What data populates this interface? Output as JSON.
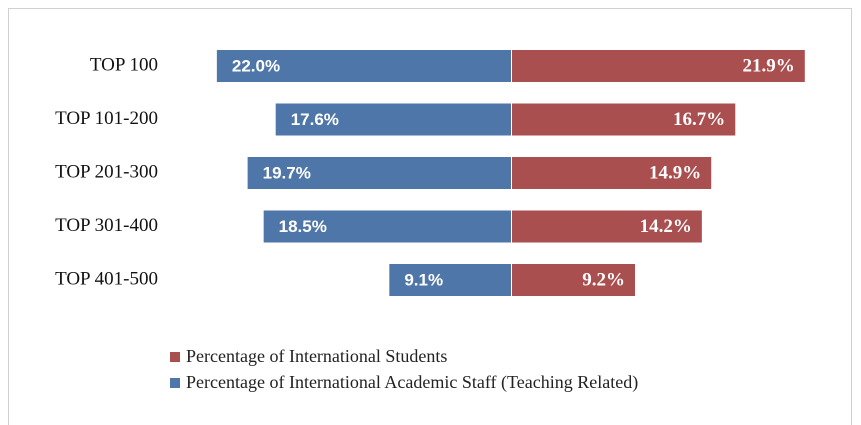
{
  "chart_data": {
    "type": "butterfly",
    "categories": [
      "TOP 100",
      "TOP 101-200",
      "TOP 201-300",
      "TOP 301-400",
      "TOP 401-500"
    ],
    "series": [
      {
        "name": "Percentage of International Students",
        "color": "#a94f4f",
        "side": "right",
        "values": [
          21.9,
          16.7,
          14.9,
          14.2,
          9.2
        ],
        "value_labels": [
          "21.9%",
          "16.7%",
          "14.9%",
          "14.2%",
          "9.2%"
        ]
      },
      {
        "name": "Percentage of International Academic Staff (Teaching Related)",
        "color": "#4f76a8",
        "side": "left",
        "values": [
          22.0,
          17.6,
          19.7,
          18.5,
          9.1
        ],
        "value_labels": [
          "22.0%",
          "17.6%",
          "19.7%",
          "18.5%",
          "9.1%"
        ]
      }
    ]
  }
}
